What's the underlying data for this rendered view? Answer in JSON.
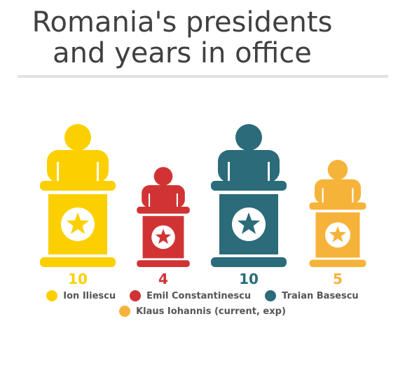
{
  "title_lines": [
    "Romania's presidents",
    "and years in office"
  ],
  "chart_data": {
    "type": "bar",
    "categories": [
      "Ion Iliescu",
      "Emil Constantinescu",
      "Traian Basescu",
      "Klaus Iohannis (current, exp)"
    ],
    "values": [
      10,
      4,
      10,
      5
    ],
    "colors": [
      "#fcd000",
      "#d13334",
      "#2b6b7a",
      "#f6b33a"
    ],
    "legend_placement": "bottom",
    "grid": false
  }
}
